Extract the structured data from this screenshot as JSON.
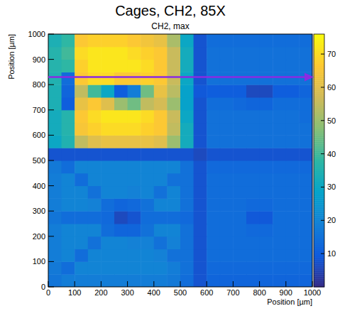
{
  "chart_data": {
    "type": "heatmap",
    "title": "Cages, CH2, 85X",
    "subtitle": "CH2, max",
    "x_label": "Position [µm]",
    "y_label": "Position [µm]",
    "xlim": [
      0,
      1000
    ],
    "ylim": [
      0,
      1000
    ],
    "xticks": [
      0,
      100,
      200,
      300,
      400,
      500,
      600,
      700,
      800,
      900,
      1000
    ],
    "yticks": [
      0,
      100,
      200,
      300,
      400,
      500,
      600,
      700,
      800,
      900,
      1000
    ],
    "x_bins": [
      0,
      50,
      100,
      150,
      200,
      250,
      300,
      350,
      400,
      450,
      500,
      550,
      600,
      650,
      700,
      750,
      800,
      850,
      900,
      950,
      1000
    ],
    "y_bins": [
      0,
      50,
      100,
      150,
      200,
      250,
      300,
      350,
      400,
      450,
      500,
      550,
      600,
      650,
      700,
      750,
      800,
      850,
      900,
      950,
      1000
    ],
    "values": [
      [
        16,
        18,
        18,
        18,
        18,
        18,
        18,
        18,
        18,
        17,
        14,
        8,
        12,
        12,
        12,
        12,
        12,
        12,
        12,
        12
      ],
      [
        17,
        14,
        20,
        20,
        20,
        20,
        20,
        20,
        20,
        18,
        15,
        8,
        13,
        13,
        13,
        13,
        13,
        13,
        13,
        13
      ],
      [
        18,
        20,
        14,
        20,
        20,
        20,
        20,
        20,
        19,
        15,
        15,
        8,
        14,
        14,
        14,
        14,
        14,
        14,
        14,
        14
      ],
      [
        18,
        20,
        20,
        15,
        20,
        20,
        19,
        19,
        15,
        19,
        15,
        8,
        14,
        14,
        14,
        14,
        14,
        14,
        14,
        14
      ],
      [
        18,
        20,
        20,
        20,
        14,
        12,
        12,
        15,
        20,
        20,
        15,
        8,
        14,
        14,
        14,
        13,
        13,
        14,
        14,
        14
      ],
      [
        16,
        14,
        14,
        14,
        13,
        6,
        8,
        14,
        14,
        14,
        13,
        8,
        14,
        14,
        14,
        9,
        9,
        14,
        14,
        14
      ],
      [
        18,
        20,
        20,
        19,
        14,
        12,
        13,
        15,
        20,
        20,
        15,
        8,
        14,
        14,
        14,
        13,
        13,
        14,
        14,
        14
      ],
      [
        18,
        20,
        20,
        15,
        20,
        20,
        19,
        20,
        15,
        20,
        15,
        8,
        14,
        14,
        14,
        14,
        14,
        14,
        14,
        14
      ],
      [
        18,
        20,
        14,
        20,
        20,
        20,
        20,
        20,
        20,
        15,
        15,
        8,
        14,
        14,
        14,
        14,
        14,
        14,
        14,
        14
      ],
      [
        17,
        14,
        20,
        20,
        20,
        20,
        20,
        20,
        20,
        20,
        15,
        8,
        13,
        13,
        13,
        13,
        13,
        13,
        13,
        13
      ],
      [
        8,
        8,
        8,
        8,
        8,
        8,
        8,
        8,
        8,
        8,
        8,
        6,
        8,
        8,
        8,
        8,
        8,
        8,
        8,
        8
      ],
      [
        30,
        35,
        55,
        60,
        62,
        62,
        62,
        62,
        60,
        50,
        32,
        8,
        15,
        15,
        15,
        15,
        15,
        15,
        15,
        15
      ],
      [
        32,
        36,
        65,
        68,
        70,
        70,
        70,
        68,
        66,
        55,
        32,
        8,
        15,
        15,
        15,
        15,
        15,
        15,
        15,
        15
      ],
      [
        32,
        36,
        66,
        70,
        72,
        72,
        72,
        70,
        66,
        56,
        30,
        8,
        15,
        15,
        15,
        15,
        15,
        15,
        15,
        14
      ],
      [
        34,
        10,
        62,
        66,
        60,
        50,
        45,
        55,
        58,
        50,
        28,
        8,
        14,
        14,
        13,
        12,
        12,
        14,
        14,
        14
      ],
      [
        34,
        12,
        55,
        40,
        30,
        10,
        18,
        45,
        62,
        54,
        28,
        9,
        10,
        10,
        10,
        6,
        6,
        10,
        10,
        12
      ],
      [
        35,
        14,
        66,
        70,
        70,
        66,
        66,
        68,
        66,
        56,
        30,
        8,
        15,
        15,
        15,
        15,
        15,
        15,
        15,
        15
      ],
      [
        36,
        38,
        68,
        72,
        72,
        72,
        72,
        70,
        66,
        56,
        32,
        8,
        15,
        15,
        15,
        15,
        15,
        15,
        15,
        15
      ],
      [
        36,
        40,
        70,
        72,
        72,
        72,
        70,
        68,
        66,
        56,
        32,
        8,
        15,
        15,
        15,
        15,
        15,
        15,
        15,
        15
      ],
      [
        34,
        38,
        66,
        68,
        68,
        68,
        66,
        64,
        62,
        52,
        30,
        8,
        14,
        14,
        14,
        14,
        14,
        14,
        14,
        14
      ]
    ],
    "zlim": [
      0,
      76
    ],
    "zticks": [
      10,
      20,
      30,
      40,
      50,
      60,
      70
    ],
    "annotations": [
      {
        "type": "arrow",
        "y": 830,
        "x_start": 0,
        "x_end": 1000,
        "color": "#8a2be2"
      }
    ]
  }
}
